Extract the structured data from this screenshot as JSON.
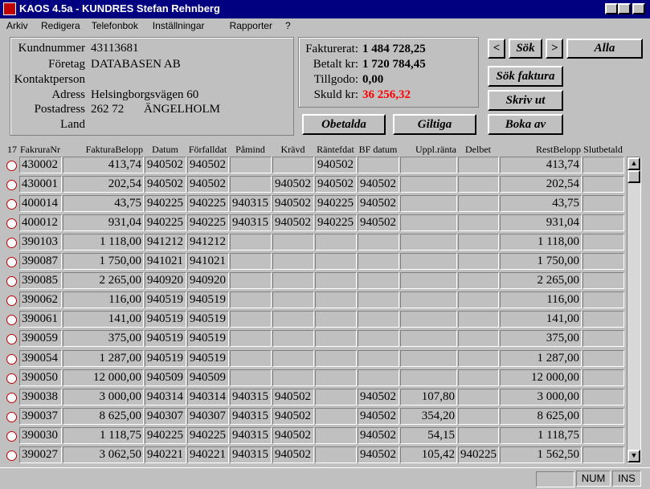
{
  "window": {
    "title": "KAOS 4.5a - KUNDRES  Stefan Rehnberg"
  },
  "menu": [
    "Arkiv",
    "Redigera",
    "Telefonbok",
    "Inställningar",
    "Rapporter",
    "?"
  ],
  "customer": {
    "fields": [
      {
        "label": "Kundnummer",
        "value": "43113681"
      },
      {
        "label": "Företag",
        "value": "DATABASEN AB"
      },
      {
        "label": "Kontaktperson"
      },
      {
        "label": "Adress",
        "value": "Helsingborgsvägen 60"
      },
      {
        "label": "Postadress",
        "value": "262 72",
        "city": "ÄNGELHOLM"
      },
      {
        "label": "Land"
      }
    ]
  },
  "summary": [
    {
      "label": "Fakturerat:",
      "value": "1 484 728,25"
    },
    {
      "label": "Betalt kr:",
      "value": "1 720 784,45"
    },
    {
      "label": "Tillgodo:",
      "value": "0,00"
    },
    {
      "label": "Skuld kr:",
      "value": "36 256,32",
      "color": "#ff0000"
    }
  ],
  "buttons": {
    "prev": "<",
    "search": "Sök",
    "next": ">",
    "all": "Alla",
    "search_invoice": "Sök faktura",
    "print": "Skriv ut",
    "book": "Boka av",
    "unpaid": "Obetalda",
    "valid": "Giltiga"
  },
  "table": {
    "count": "17",
    "columns": [
      "FakruraNr",
      "FakturaBelopp",
      "Datum",
      "Förfalldat",
      "Påmind",
      "Krävd",
      "Räntefdat",
      "BF datum",
      "Uppl.ränta",
      "Delbet",
      "RestBelopp",
      "Slutbetald"
    ],
    "rows": [
      [
        "430002",
        "413,74",
        "940502",
        "940502",
        null,
        null,
        "940502",
        null,
        null,
        null,
        "413,74",
        null
      ],
      [
        "430001",
        "202,54",
        "940502",
        "940502",
        null,
        "940502",
        "940502",
        "940502",
        null,
        null,
        "202,54",
        null
      ],
      [
        "400014",
        "43,75",
        "940225",
        "940225",
        "940315",
        "940502",
        "940225",
        "940502",
        null,
        null,
        "43,75",
        null
      ],
      [
        "400012",
        "931,04",
        "940225",
        "940225",
        "940315",
        "940502",
        "940225",
        "940502",
        null,
        null,
        "931,04",
        null
      ],
      [
        "390103",
        "1 118,00",
        "941212",
        "941212",
        null,
        null,
        null,
        null,
        null,
        null,
        "1 118,00",
        null
      ],
      [
        "390087",
        "1 750,00",
        "941021",
        "941021",
        null,
        null,
        null,
        null,
        null,
        null,
        "1 750,00",
        null
      ],
      [
        "390085",
        "2 265,00",
        "940920",
        "940920",
        null,
        null,
        null,
        null,
        null,
        null,
        "2 265,00",
        null
      ],
      [
        "390062",
        "116,00",
        "940519",
        "940519",
        null,
        null,
        null,
        null,
        null,
        null,
        "116,00",
        null
      ],
      [
        "390061",
        "141,00",
        "940519",
        "940519",
        null,
        null,
        null,
        null,
        null,
        null,
        "141,00",
        null
      ],
      [
        "390059",
        "375,00",
        "940519",
        "940519",
        null,
        null,
        null,
        null,
        null,
        null,
        "375,00",
        null
      ],
      [
        "390054",
        "1 287,00",
        "940519",
        "940519",
        null,
        null,
        null,
        null,
        null,
        null,
        "1 287,00",
        null
      ],
      [
        "390050",
        "12 000,00",
        "940509",
        "940509",
        null,
        null,
        null,
        null,
        null,
        null,
        "12 000,00",
        null
      ],
      [
        "390038",
        "3 000,00",
        "940314",
        "940314",
        "940315",
        "940502",
        null,
        "940502",
        "107,80",
        null,
        "3 000,00",
        null
      ],
      [
        "390037",
        "8 625,00",
        "940307",
        "940307",
        "940315",
        "940502",
        null,
        "940502",
        "354,20",
        null,
        "8 625,00",
        null
      ],
      [
        "390030",
        "1 118,75",
        "940225",
        "940225",
        "940315",
        "940502",
        null,
        "940502",
        "54,15",
        null,
        "1 118,75",
        null
      ],
      [
        "390027",
        "3 062,50",
        "940221",
        "940221",
        "940315",
        "940502",
        null,
        "940502",
        "105,42",
        "940225",
        "1 562,50",
        null
      ]
    ]
  },
  "status": [
    "NUM",
    "INS"
  ]
}
